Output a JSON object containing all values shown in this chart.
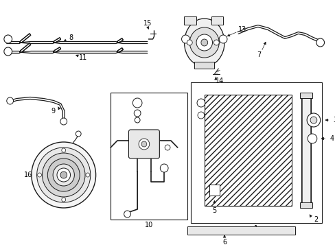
{
  "bg_color": "#ffffff",
  "fig_width": 4.89,
  "fig_height": 3.6,
  "dpi": 100,
  "lc": "#1a1a1a"
}
